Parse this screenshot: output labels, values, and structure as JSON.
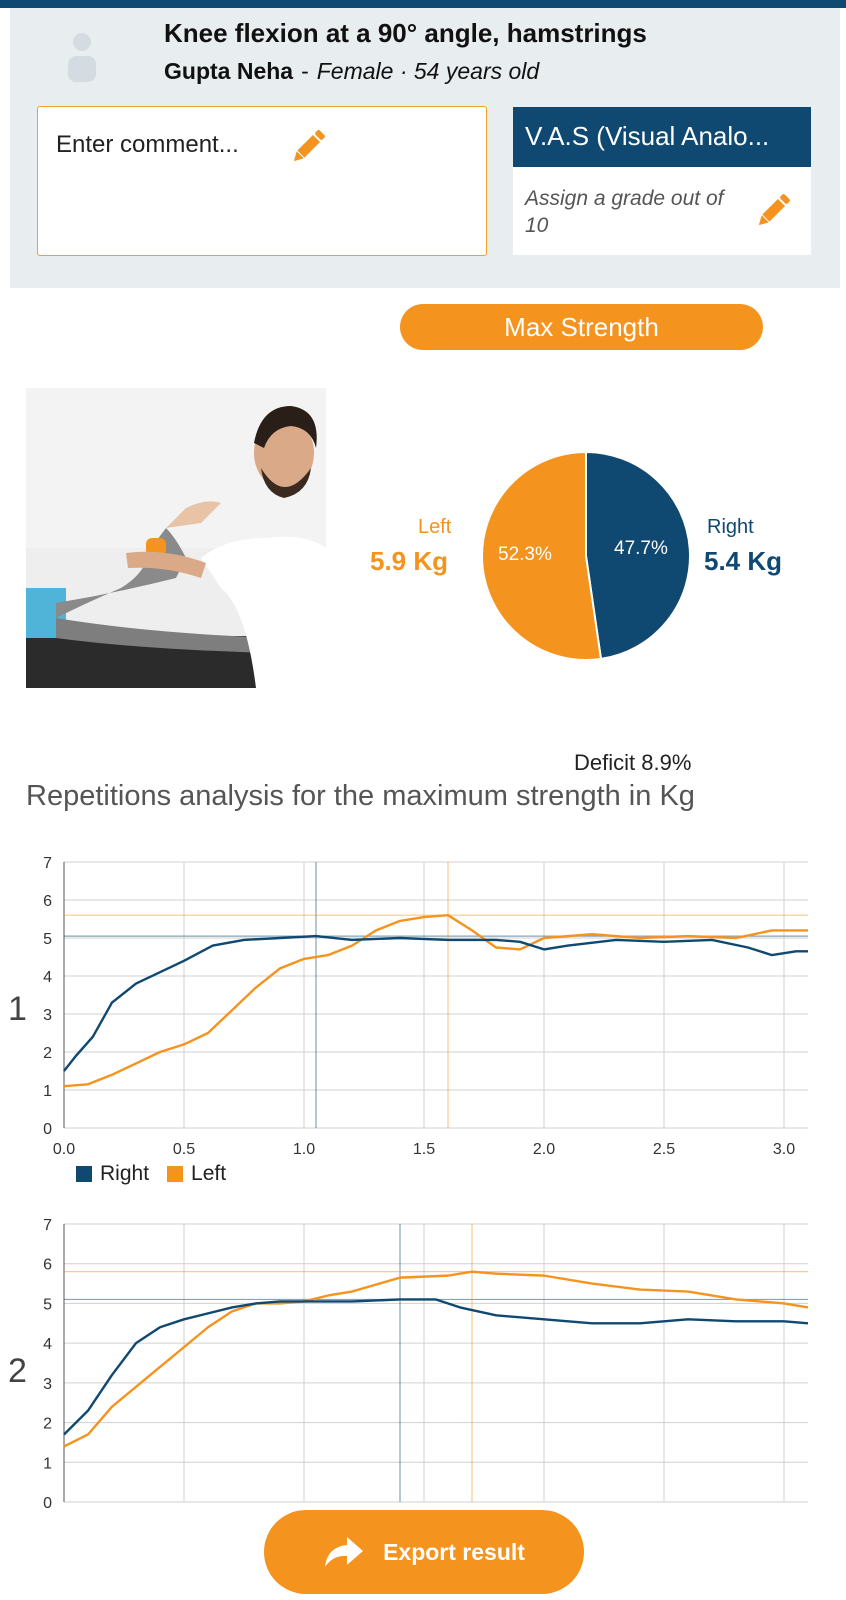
{
  "header": {
    "title": "Knee flexion at a 90° angle, hamstrings",
    "patient_name": "Gupta Neha",
    "separator": "-",
    "patient_meta": "Female · 54 years old"
  },
  "comment": {
    "placeholder": "Enter comment..."
  },
  "vas": {
    "title": "V.A.S (Visual Analo...",
    "hint": "Assign a grade out of 10"
  },
  "mode_button": "Max Strength",
  "strength": {
    "left_label": "Left",
    "left_value": "5.9 Kg",
    "right_label": "Right",
    "right_value": "5.4 Kg",
    "left_pct": "52.3%",
    "right_pct": "47.7%",
    "deficit": "Deficit 8.9%"
  },
  "analysis_title": "Repetitions analysis for the maximum strength in Kg",
  "legend": {
    "right": "Right",
    "left": "Left"
  },
  "export_label": "Export result",
  "colors": {
    "right": "#0f4870",
    "left": "#f5931f",
    "accent": "#f5931f"
  },
  "icons": {
    "edit": "pencil-icon",
    "export": "share-arrow-icon",
    "avatar": "user-icon"
  },
  "chart_data": [
    {
      "type": "pie",
      "categories": [
        "Left",
        "Right"
      ],
      "values": [
        52.3,
        47.7
      ]
    },
    {
      "type": "line",
      "title": "1",
      "xlim": [
        0,
        3.1
      ],
      "ylim": [
        0,
        7
      ],
      "xticks": [
        "0.0",
        "0.5",
        "1.0",
        "1.5",
        "2.0",
        "2.5",
        "3.0"
      ],
      "yticks": [
        "0",
        "1",
        "2",
        "3",
        "4",
        "5",
        "6",
        "7"
      ],
      "series": [
        {
          "name": "Right",
          "x": [
            0,
            0.05,
            0.12,
            0.2,
            0.3,
            0.4,
            0.5,
            0.62,
            0.75,
            0.9,
            1.05,
            1.2,
            1.4,
            1.6,
            1.8,
            1.9,
            2.0,
            2.1,
            2.3,
            2.5,
            2.7,
            2.85,
            2.95,
            3.05,
            3.1
          ],
          "y": [
            1.5,
            1.9,
            2.4,
            3.3,
            3.8,
            4.1,
            4.4,
            4.8,
            4.95,
            5.0,
            5.05,
            4.95,
            5.0,
            4.95,
            4.95,
            4.9,
            4.7,
            4.8,
            4.95,
            4.9,
            4.95,
            4.75,
            4.55,
            4.65,
            4.65
          ]
        },
        {
          "name": "Left",
          "x": [
            0,
            0.1,
            0.2,
            0.3,
            0.4,
            0.5,
            0.6,
            0.7,
            0.8,
            0.9,
            1.0,
            1.1,
            1.2,
            1.3,
            1.4,
            1.5,
            1.6,
            1.7,
            1.8,
            1.9,
            2.0,
            2.2,
            2.4,
            2.6,
            2.8,
            2.95,
            3.1
          ],
          "y": [
            1.1,
            1.15,
            1.4,
            1.7,
            2.0,
            2.2,
            2.5,
            3.1,
            3.7,
            4.2,
            4.45,
            4.55,
            4.8,
            5.2,
            5.45,
            5.55,
            5.6,
            5.2,
            4.75,
            4.7,
            5.0,
            5.1,
            5.0,
            5.05,
            5.0,
            5.2,
            5.2
          ]
        }
      ]
    },
    {
      "type": "line",
      "title": "2",
      "xlim": [
        0,
        3.1
      ],
      "ylim": [
        0,
        7
      ],
      "yticks": [
        "0",
        "1",
        "2",
        "3",
        "4",
        "5",
        "6",
        "7"
      ],
      "series": [
        {
          "name": "Right",
          "x": [
            0,
            0.1,
            0.2,
            0.3,
            0.4,
            0.5,
            0.6,
            0.7,
            0.8,
            0.9,
            1.0,
            1.2,
            1.4,
            1.55,
            1.65,
            1.8,
            2.0,
            2.2,
            2.4,
            2.6,
            2.8,
            3.0,
            3.1
          ],
          "y": [
            1.7,
            2.3,
            3.2,
            4.0,
            4.4,
            4.6,
            4.75,
            4.9,
            5.0,
            5.05,
            5.05,
            5.05,
            5.1,
            5.1,
            4.9,
            4.7,
            4.6,
            4.5,
            4.5,
            4.6,
            4.55,
            4.55,
            4.5
          ]
        },
        {
          "name": "Left",
          "x": [
            0,
            0.1,
            0.2,
            0.3,
            0.4,
            0.5,
            0.6,
            0.7,
            0.8,
            0.9,
            1.0,
            1.1,
            1.2,
            1.4,
            1.6,
            1.7,
            1.8,
            2.0,
            2.2,
            2.4,
            2.6,
            2.8,
            3.0,
            3.1
          ],
          "y": [
            1.4,
            1.7,
            2.4,
            2.9,
            3.4,
            3.9,
            4.4,
            4.8,
            5.0,
            5.0,
            5.05,
            5.2,
            5.3,
            5.65,
            5.7,
            5.8,
            5.75,
            5.7,
            5.5,
            5.35,
            5.3,
            5.1,
            5.0,
            4.9
          ]
        }
      ]
    }
  ]
}
